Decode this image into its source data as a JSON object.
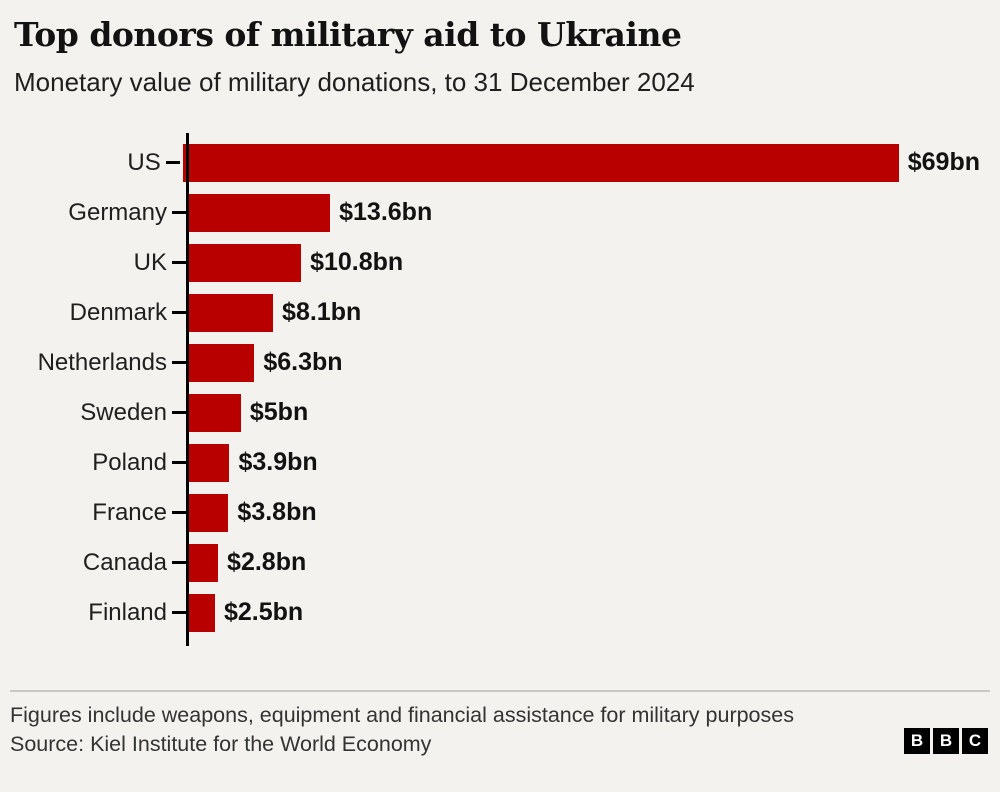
{
  "header": {
    "title": "Top donors of military aid to Ukraine",
    "subtitle": "Monetary value of military donations, to 31 December 2024"
  },
  "chart_data": {
    "type": "bar",
    "orientation": "horizontal",
    "title": "Top donors of military aid to Ukraine",
    "subtitle": "Monetary value of military donations, to 31 December 2024",
    "categories": [
      "US",
      "Germany",
      "UK",
      "Denmark",
      "Netherlands",
      "Sweden",
      "Poland",
      "France",
      "Canada",
      "Finland"
    ],
    "values": [
      69,
      13.6,
      10.8,
      8.1,
      6.3,
      5,
      3.9,
      3.8,
      2.8,
      2.5
    ],
    "value_labels": [
      "$69bn",
      "$13.6bn",
      "$10.8bn",
      "$8.1bn",
      "$6.3bn",
      "$5bn",
      "$3.9bn",
      "$3.8bn",
      "$2.8bn",
      "$2.5bn"
    ],
    "unit": "$bn",
    "xlabel": "",
    "ylabel": "",
    "xlim": [
      0,
      69
    ],
    "grid": false,
    "legend": false,
    "bar_color": "#b80000"
  },
  "footer": {
    "note": "Figures include weapons, equipment and financial assistance for military purposes",
    "source": "Source: Kiel Institute for the World Economy",
    "logo_letters": [
      "B",
      "B",
      "C"
    ]
  },
  "colors": {
    "bar": "#b80000",
    "background": "#f4f2ee",
    "text": "#141414",
    "axis": "#000000",
    "divider": "#cac8c4"
  }
}
